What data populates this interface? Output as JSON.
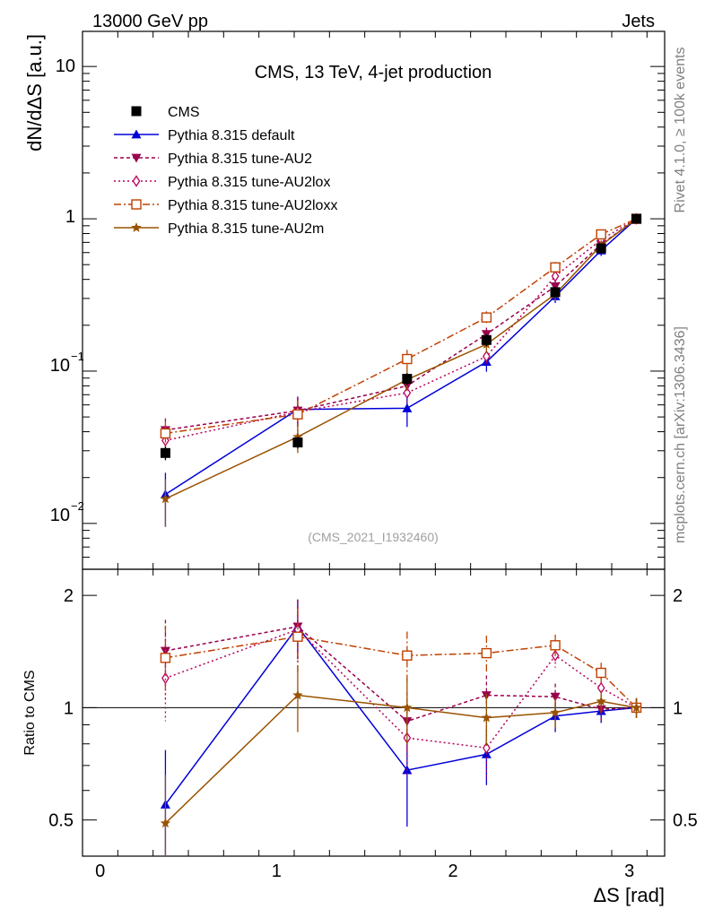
{
  "header": {
    "left": "13000 GeV pp",
    "right": "Jets"
  },
  "side_labels": {
    "rivet": "Rivet 4.1.0, ≥ 100k events",
    "mcplots": "mcplots.cern.ch [arXiv:1306.3436]"
  },
  "chart_data": {
    "type": "line",
    "title": "CMS, 13 TeV, 4-jet production",
    "analysis_id": "(CMS_2021_I1932460)",
    "xlabel": "ΔS [rad]",
    "ylabel": "dN/dΔS [a.u.]",
    "ratio_ylabel": "Ratio to CMS",
    "xlim": [
      -0.1,
      3.2
    ],
    "ylim": [
      0.005,
      17
    ],
    "ylog": true,
    "ratio_ylim": [
      0.4,
      2.35
    ],
    "ratio_ylog": true,
    "x_ticks": [
      0,
      1,
      2,
      3
    ],
    "x_tick_labels": [
      "0",
      "1",
      "2",
      "3"
    ],
    "y_tick_labels": {
      "t10": "10",
      "t1": "1",
      "t01_base": "10",
      "t01_exp": "−1",
      "t001_base": "10",
      "t001_exp": "−2"
    },
    "ratio_y_ticks": [
      0.5,
      1,
      2
    ],
    "ratio_y_tick_labels": [
      "0.5",
      "1",
      "2"
    ],
    "x": [
      0.37,
      1.12,
      1.74,
      2.19,
      2.58,
      2.84,
      3.04
    ],
    "data": {
      "name": "CMS",
      "values": [
        0.029,
        0.034,
        0.089,
        0.16,
        0.33,
        0.64,
        1.0
      ],
      "errors": [
        0.003,
        0.003,
        0.008,
        0.014,
        0.025,
        0.04,
        0.05
      ]
    },
    "series": [
      {
        "name": "Pythia 8.315 default",
        "color": "#0000d8",
        "dash": "",
        "marker": "triangle-up",
        "values": [
          0.0155,
          0.056,
          0.057,
          0.115,
          0.31,
          0.62,
          1.0
        ],
        "errors": [
          0.006,
          0.012,
          0.014,
          0.016,
          0.03,
          0.05,
          0.04
        ],
        "ratio": [
          0.55,
          1.65,
          0.68,
          0.75,
          0.95,
          0.98,
          1.0
        ],
        "ratio_err": [
          0.22,
          0.3,
          0.2,
          0.13,
          0.09,
          0.07,
          0.06
        ]
      },
      {
        "name": "Pythia 8.315 tune-AU2",
        "color": "#99004d",
        "dash": "4 3",
        "marker": "triangle-down",
        "values": [
          0.041,
          0.055,
          0.08,
          0.175,
          0.36,
          0.68,
          1.0
        ],
        "errors": [
          0.008,
          0.012,
          0.012,
          0.018,
          0.03,
          0.05,
          0.04
        ],
        "ratio": [
          1.42,
          1.65,
          0.92,
          1.08,
          1.07,
          0.99,
          1.0
        ],
        "ratio_err": [
          0.3,
          0.3,
          0.18,
          0.14,
          0.09,
          0.07,
          0.06
        ]
      },
      {
        "name": "Pythia 8.315 tune-AU2lox",
        "color": "#b8005c",
        "dash": "2 3",
        "marker": "diamond",
        "values": [
          0.035,
          0.054,
          0.072,
          0.125,
          0.42,
          0.73,
          1.0
        ],
        "errors": [
          0.008,
          0.012,
          0.012,
          0.016,
          0.035,
          0.05,
          0.04
        ],
        "ratio": [
          1.2,
          1.62,
          0.83,
          0.78,
          1.38,
          1.13,
          1.0
        ],
        "ratio_err": [
          0.28,
          0.3,
          0.18,
          0.14,
          0.1,
          0.08,
          0.06
        ]
      },
      {
        "name": "Pythia 8.315 tune-AU2loxx",
        "color": "#c04000",
        "dash": "8 3 2 3",
        "marker": "open-square",
        "values": [
          0.039,
          0.052,
          0.12,
          0.225,
          0.48,
          0.79,
          1.0
        ],
        "errors": [
          0.008,
          0.012,
          0.018,
          0.022,
          0.04,
          0.06,
          0.04
        ],
        "ratio": [
          1.36,
          1.55,
          1.38,
          1.4,
          1.47,
          1.24,
          1.0
        ],
        "ratio_err": [
          0.3,
          0.3,
          0.22,
          0.16,
          0.1,
          0.08,
          0.06
        ]
      },
      {
        "name": "Pythia 8.315 tune-AU2m",
        "color": "#995200",
        "dash": "",
        "marker": "star",
        "values": [
          0.0145,
          0.037,
          0.088,
          0.15,
          0.32,
          0.67,
          1.0
        ],
        "errors": [
          0.005,
          0.008,
          0.014,
          0.018,
          0.03,
          0.05,
          0.04
        ],
        "ratio": [
          0.49,
          1.08,
          1.0,
          0.94,
          0.97,
          1.04,
          1.0
        ],
        "ratio_err": [
          0.17,
          0.22,
          0.2,
          0.15,
          0.09,
          0.07,
          0.06
        ]
      }
    ]
  }
}
